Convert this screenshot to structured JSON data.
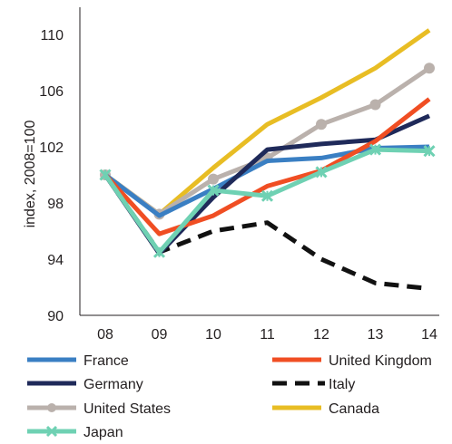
{
  "chart_data": {
    "type": "line",
    "title": "",
    "xlabel": "",
    "ylabel": "index, 2008=100",
    "categories": [
      "08",
      "09",
      "10",
      "11",
      "12",
      "13",
      "14"
    ],
    "ylim": [
      90,
      112
    ],
    "yticks": [
      "90",
      "94",
      "98",
      "102",
      "106",
      "110"
    ],
    "grid": false,
    "legend_position": "bottom",
    "series": [
      {
        "name": "France",
        "color": "#3a7fc3",
        "style": "solid",
        "marker": "none",
        "values": [
          100,
          97.1,
          99.0,
          101.0,
          101.2,
          101.9,
          102.0
        ]
      },
      {
        "name": "United Kingdom",
        "color": "#f04e23",
        "style": "solid",
        "marker": "none",
        "values": [
          100,
          95.8,
          97.1,
          99.2,
          100.3,
          102.4,
          105.4
        ]
      },
      {
        "name": "Germany",
        "color": "#1f2a5a",
        "style": "solid",
        "marker": "none",
        "values": [
          100,
          94.4,
          98.4,
          101.8,
          102.2,
          102.5,
          104.2
        ]
      },
      {
        "name": "Italy",
        "color": "#111111",
        "style": "dashed",
        "marker": "none",
        "values": [
          100,
          94.5,
          96.0,
          96.6,
          94.0,
          92.3,
          91.9
        ]
      },
      {
        "name": "United States",
        "color": "#bab1ac",
        "style": "solid",
        "marker": "circle",
        "values": [
          100,
          97.2,
          99.7,
          101.2,
          103.6,
          105.0,
          107.6
        ]
      },
      {
        "name": "Canada",
        "color": "#e8bd24",
        "style": "solid",
        "marker": "none",
        "values": [
          100,
          97.2,
          100.5,
          103.6,
          105.5,
          107.6,
          110.3
        ]
      },
      {
        "name": "Japan",
        "color": "#6fd1b3",
        "style": "solid",
        "marker": "x",
        "values": [
          100,
          94.5,
          98.9,
          98.5,
          100.2,
          101.8,
          101.7
        ]
      }
    ]
  }
}
